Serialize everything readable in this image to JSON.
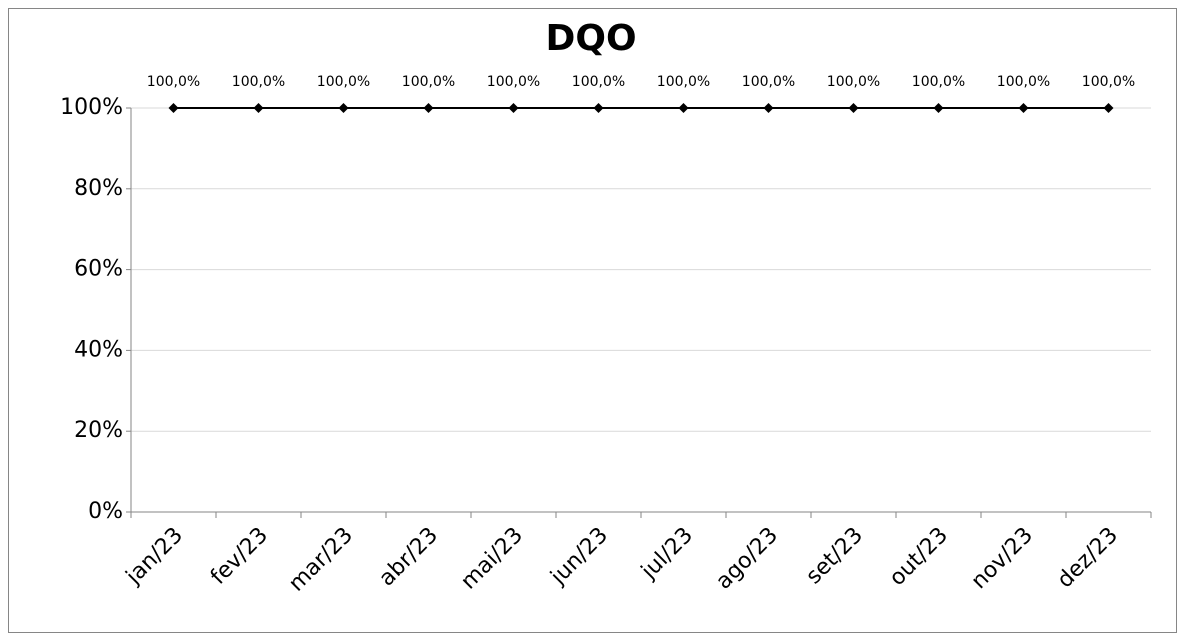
{
  "chart_data": {
    "type": "line",
    "title": "DQO",
    "categories": [
      "jan/23",
      "fev/23",
      "mar/23",
      "abr/23",
      "mai/23",
      "jun/23",
      "jul/23",
      "ago/23",
      "set/23",
      "out/23",
      "nov/23",
      "dez/23"
    ],
    "values": [
      100,
      100,
      100,
      100,
      100,
      100,
      100,
      100,
      100,
      100,
      100,
      100
    ],
    "value_labels": [
      "100,0%",
      "100,0%",
      "100,0%",
      "100,0%",
      "100,0%",
      "100,0%",
      "100,0%",
      "100,0%",
      "100,0%",
      "100,0%",
      "100,0%",
      "100,0%"
    ],
    "color": "#000000",
    "ylim": [
      0,
      100
    ],
    "yticks": [
      {
        "value": 0,
        "label": "0%"
      },
      {
        "value": 20,
        "label": "20%"
      },
      {
        "value": 40,
        "label": "40%"
      },
      {
        "value": 60,
        "label": "60%"
      },
      {
        "value": 80,
        "label": "80%"
      },
      {
        "value": 100,
        "label": "100%"
      }
    ],
    "grid": true
  }
}
